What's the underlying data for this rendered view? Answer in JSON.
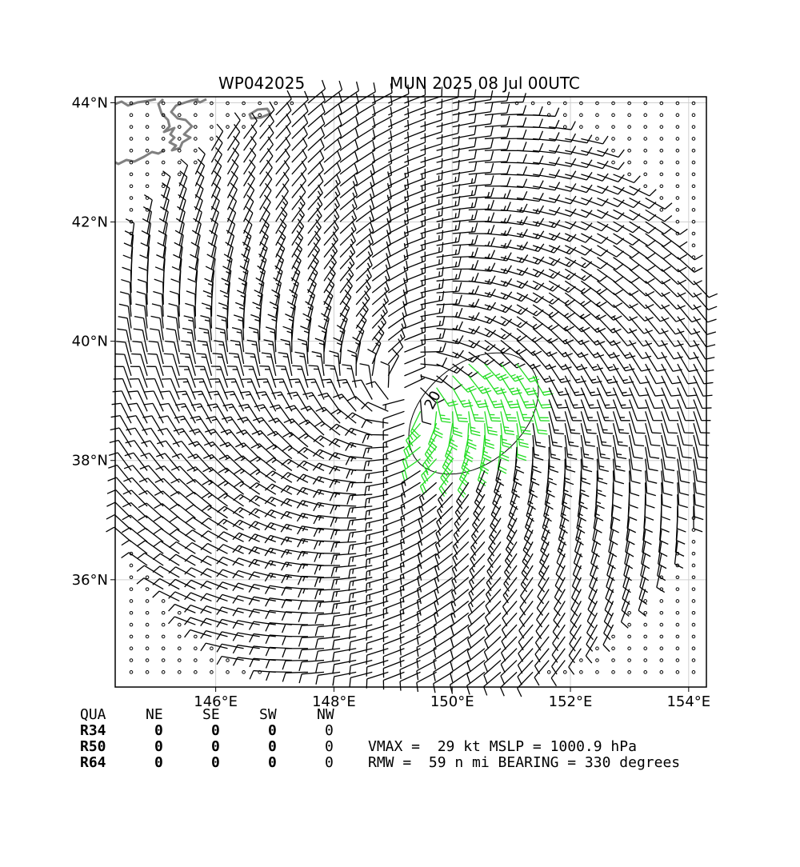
{
  "title": {
    "storm_id": "WP042025",
    "model_time": "MUN 2025 08 Jul 00UTC"
  },
  "map": {
    "lat_ticks": [
      "44°N",
      "42°N",
      "40°N",
      "38°N",
      "36°N"
    ],
    "lon_ticks": [
      "146°E",
      "148°E",
      "150°E",
      "152°E",
      "154°E"
    ],
    "lat_range": [
      34.2,
      44.1
    ],
    "lon_range": [
      144.3,
      154.3
    ],
    "contour_label": "20",
    "colors": {
      "barb": "#000000",
      "barb_strong": "#22dd22",
      "coast": "#808080",
      "grid": "#d0d0d0"
    }
  },
  "quadrants": {
    "header": [
      "QUA",
      "NE",
      "SE",
      "SW",
      "NW"
    ],
    "rows": [
      {
        "label": "R34",
        "values": [
          "0",
          "0",
          "0",
          "0"
        ]
      },
      {
        "label": "R50",
        "values": [
          "0",
          "0",
          "0",
          "0"
        ]
      },
      {
        "label": "R64",
        "values": [
          "0",
          "0",
          "0",
          "0"
        ]
      }
    ]
  },
  "info": {
    "line1": "VMAX =  29 kt MSLP = 1000.9 hPa",
    "line2": "RMW =  59 n mi BEARING = 330 degrees"
  },
  "storm": {
    "center_lat": 39.1,
    "center_lon": 149.2,
    "vmax_kt": 29
  }
}
